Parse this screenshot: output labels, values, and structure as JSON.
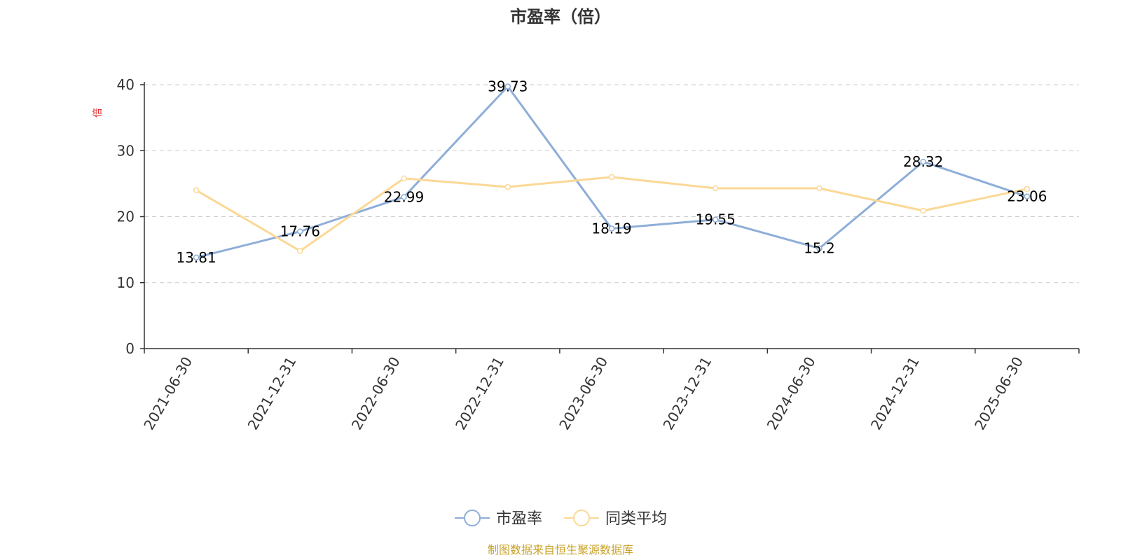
{
  "chart_data": {
    "type": "line",
    "title": "市盈率（倍）",
    "ylabel": "倍",
    "ylim": [
      0,
      40
    ],
    "yticks": [
      0,
      10,
      20,
      30,
      40
    ],
    "grid": true,
    "legend_position": "bottom",
    "categories": [
      "2021-06-30",
      "2021-12-31",
      "2022-06-30",
      "2022-12-31",
      "2023-06-30",
      "2023-12-31",
      "2024-06-30",
      "2024-12-31",
      "2025-06-30"
    ],
    "series": [
      {
        "name": "市盈率",
        "color": "#8eaed8",
        "values": [
          13.81,
          17.76,
          22.99,
          39.73,
          18.19,
          19.55,
          15.2,
          28.32,
          23.06
        ],
        "labels": [
          "13.81",
          "17.76",
          "22.99",
          "39.73",
          "18.19",
          "19.55",
          "15.2",
          "28.32",
          "23.06"
        ]
      },
      {
        "name": "同类平均",
        "color": "#fbd896",
        "values": [
          24.0,
          14.8,
          25.8,
          24.5,
          26.0,
          24.3,
          24.3,
          20.9,
          24.2
        ]
      }
    ],
    "source": "制图数据来自恒生聚源数据库",
    "source_color": "#c9a227",
    "unit_color": "#e02020"
  }
}
